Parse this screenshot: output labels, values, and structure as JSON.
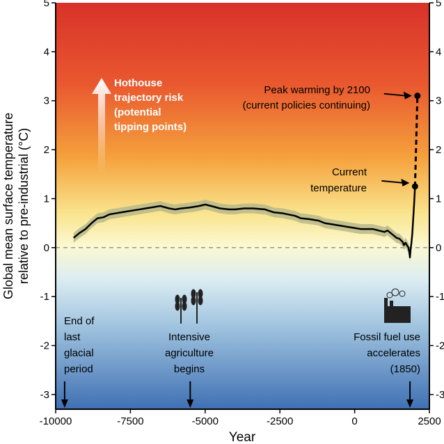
{
  "chart_data": {
    "type": "line",
    "xlabel": "Year",
    "ylabel_lines": [
      "Global mean surface temperature",
      "relative to pre-industrial (°C)"
    ],
    "xlim": [
      -10000,
      2500
    ],
    "ylim": [
      -3.3,
      5
    ],
    "xticks": [
      -10000,
      -7500,
      -5000,
      -2500,
      0,
      2500
    ],
    "xtick_labels": [
      "-10000",
      "-7500",
      "-5000",
      "-2500",
      "0",
      "2500"
    ],
    "yticks": [
      -3,
      -2,
      -1,
      0,
      1,
      2,
      3,
      4,
      5
    ],
    "ytick_labels": [
      "-3",
      "-2",
      "-1",
      "0",
      "1",
      "2",
      "3",
      "4",
      "5"
    ],
    "reference_line": 0,
    "series": [
      {
        "x": [
          -9400,
          -9200,
          -9000,
          -8800,
          -8600,
          -8400,
          -8200,
          -8000,
          -7800,
          -7500,
          -7200,
          -7000,
          -6800,
          -6500,
          -6200,
          -6000,
          -5800,
          -5500,
          -5200,
          -5000,
          -4800,
          -4500,
          -4200,
          -4000,
          -3700,
          -3400,
          -3000,
          -2700,
          -2400,
          -2000,
          -1800,
          -1500,
          -1200,
          -1000,
          -800,
          -500,
          -200,
          0,
          200,
          400,
          600,
          800,
          1000,
          1100,
          1200,
          1300,
          1400,
          1500,
          1600,
          1650,
          1700,
          1750,
          1800,
          1830,
          1850,
          1870,
          1900,
          1930,
          1960,
          1990,
          2020
        ],
        "y": [
          0.2,
          0.3,
          0.38,
          0.5,
          0.6,
          0.62,
          0.68,
          0.7,
          0.72,
          0.75,
          0.78,
          0.8,
          0.82,
          0.85,
          0.8,
          0.78,
          0.8,
          0.82,
          0.85,
          0.88,
          0.85,
          0.8,
          0.78,
          0.78,
          0.8,
          0.8,
          0.78,
          0.72,
          0.7,
          0.65,
          0.6,
          0.58,
          0.55,
          0.5,
          0.48,
          0.45,
          0.42,
          0.4,
          0.38,
          0.38,
          0.38,
          0.35,
          0.32,
          0.35,
          0.3,
          0.25,
          0.2,
          0.18,
          0.12,
          0.05,
          0.1,
          0.05,
          0.0,
          -0.1,
          -0.2,
          -0.05,
          0.1,
          0.3,
          0.6,
          0.9,
          1.25
        ],
        "uncertainty": 0.1
      },
      {
        "style": "dashed",
        "x": [
          2020,
          2100
        ],
        "y": [
          1.25,
          3.1
        ]
      }
    ],
    "markers": [
      {
        "x": 2020,
        "y": 1.25,
        "label": [
          "Current",
          "temperature"
        ]
      },
      {
        "x": 2100,
        "y": 3.1,
        "label": [
          "Peak warming by 2100",
          "(current policies continuing)"
        ]
      }
    ],
    "annotations": {
      "hothouse": [
        "Hothouse",
        "trajectory risk",
        "(potential",
        "tipping points)"
      ],
      "events": [
        {
          "x": -9700,
          "label": [
            "End of",
            "last",
            "glacial",
            "period"
          ]
        },
        {
          "x": -5500,
          "label": [
            "Intensive",
            "agriculture",
            "begins"
          ],
          "icon": "wheat-icon"
        },
        {
          "x": 1850,
          "label": [
            "Fossil fuel use",
            "accelerates",
            "(1850)"
          ],
          "icon": "factory-icon"
        }
      ]
    },
    "colors": {
      "hot": "#d8322a",
      "warm": "#f5a13c",
      "neutral": "#fbf6c8",
      "cool": "#cfe6ef",
      "cold": "#3f70b3",
      "band": "#b7b889",
      "line": "#000000"
    }
  }
}
